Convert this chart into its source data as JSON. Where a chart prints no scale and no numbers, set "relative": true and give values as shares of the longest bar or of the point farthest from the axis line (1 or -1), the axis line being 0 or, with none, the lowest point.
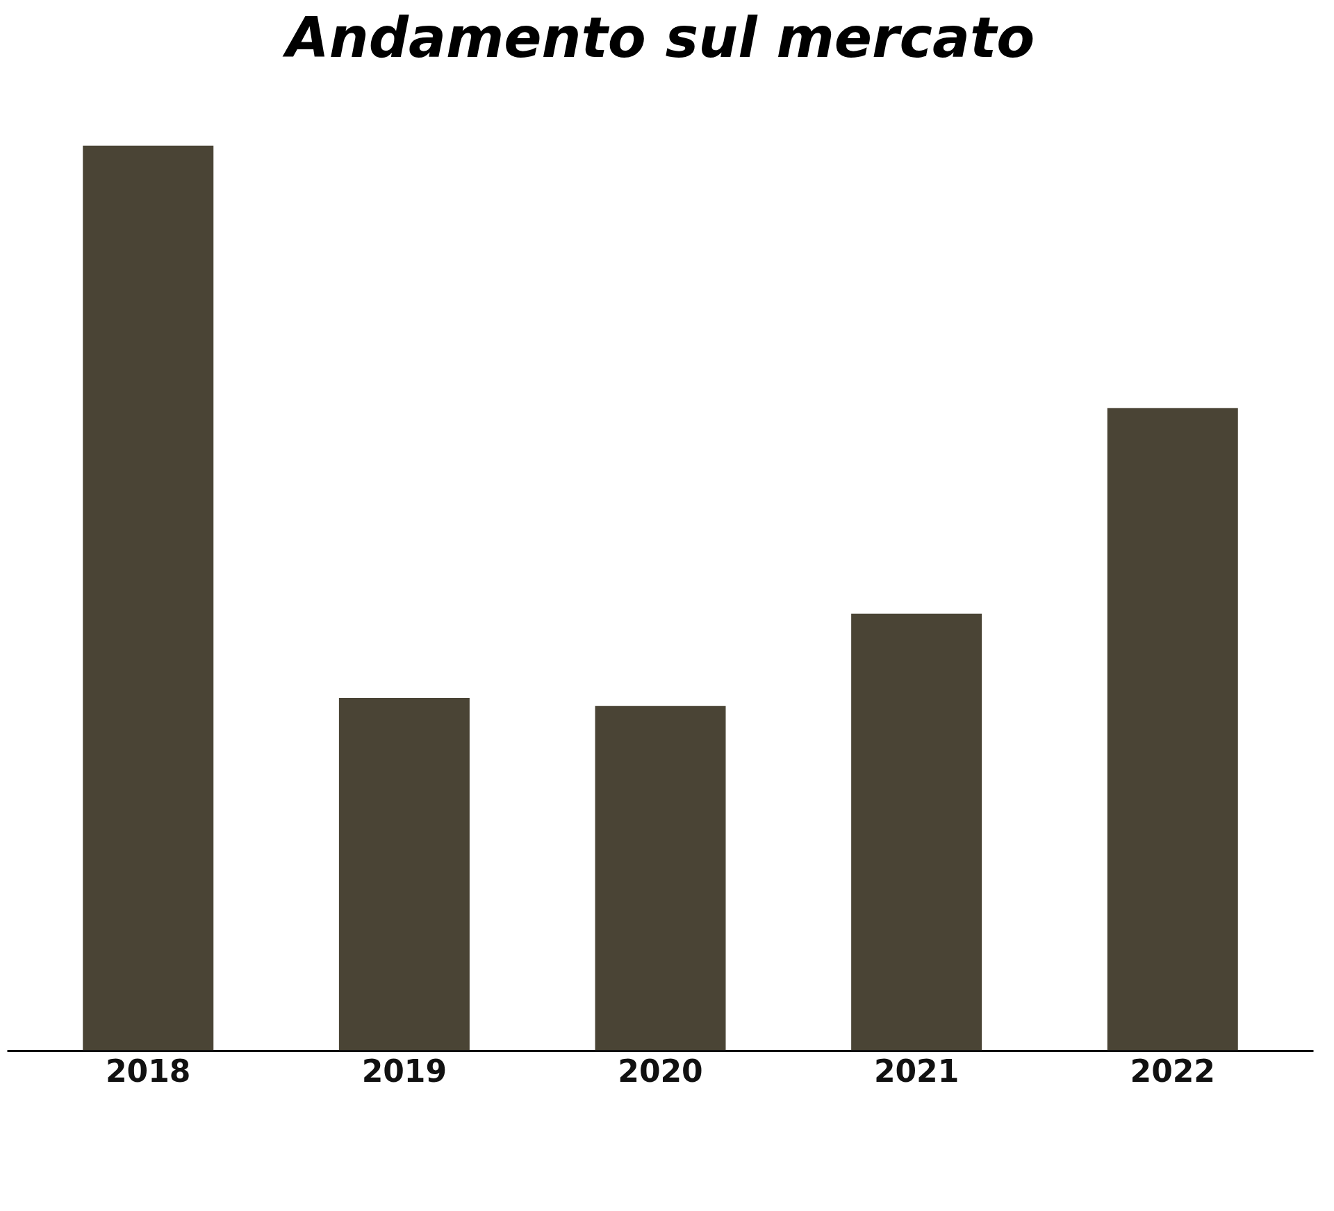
{
  "chart_data": {
    "type": "bar",
    "title": "Andamento sul mercato",
    "categories": [
      "2018",
      "2019",
      "2020",
      "2021",
      "2022"
    ],
    "values": [
      1,
      0.39,
      0.381,
      0.483,
      0.71
    ],
    "color": "#4a4435",
    "relative": true,
    "grid": false
  }
}
